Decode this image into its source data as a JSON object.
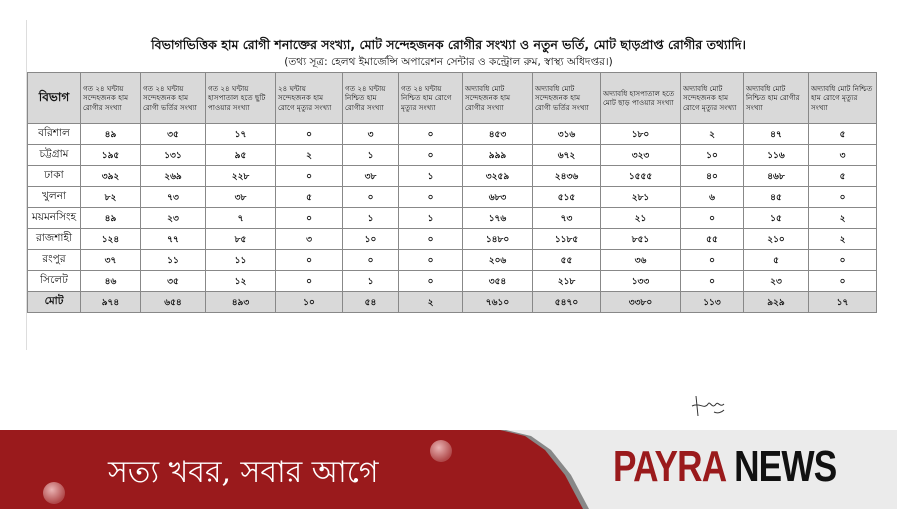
{
  "document": {
    "title": "বিভাগভিত্তিক হাম রোগী শনাক্তের সংখ্যা, মোট সন্দেহজনক রোগীর সংখ্যা ও নতুন ভর্তি, মোট ছাড়প্রাপ্ত রোগীর তথ্যাদি।",
    "subtitle": "(তথ্য সূত্র: হেলথ ইমার্জেন্সি অপারেশন সেন্টার ও কন্ট্রোল রুম, স্বাস্থ্য অধিদপ্তর।)"
  },
  "table": {
    "headers": [
      "বিভাগ",
      "গত ২৪ ঘন্টায় সন্দেহজনক হাম রোগীর সংখ্যা",
      "গত ২৪ ঘন্টায় সন্দেহজনক হাম রোগী ভর্তির সংখ্যা",
      "গত ২৪ ঘন্টায় হাসপাতাল হতে ছুটি পাওয়ার সংখ্যা",
      "২৪ ঘন্টায় সন্দেহজনক হাম রোগে মৃত্যুর সংখ্যা",
      "গত ২৪ ঘন্টায় নিশ্চিত হাম রোগীর সংখ্যা",
      "গত ২৪ ঘন্টায় নিশ্চিত হাম রোগে মৃত্যুর সংখ্যা",
      "অদ্যাবধি মোট সন্দেহজনক হাম রোগীর সংখ্যা",
      "অদ্যাবধি মোট সন্দেহজনক হাম রোগী ভর্তির সংখ্যা",
      "অদ্যাবধি হাসপাতাল হতে মোট ছাড় পাওয়ার সংখ্যা",
      "অদ্যাবধি মোট সন্দেহজনক হাম রোগে মৃত্যুর সংখ্যা",
      "অদ্যাবধি মোট নিশ্চিত হাম রোগীর সংখ্যা",
      "অদ্যাবধি মোট নিশ্চিত হাম রোগে মৃত্যুর সংখ্যা"
    ],
    "rows": [
      [
        "বরিশাল",
        "৪৯",
        "৩৫",
        "১৭",
        "০",
        "৩",
        "০",
        "৪৫৩",
        "৩১৬",
        "১৮০",
        "২",
        "৪৭",
        "৫"
      ],
      [
        "চট্টগ্রাম",
        "১৯৫",
        "১৩১",
        "৯৫",
        "২",
        "১",
        "০",
        "৯৯৯",
        "৬৭২",
        "৩২৩",
        "১০",
        "১১৬",
        "৩"
      ],
      [
        "ঢাকা",
        "৩৯২",
        "২৬৯",
        "২২৮",
        "০",
        "৩৮",
        "১",
        "৩২৫৯",
        "২৪৩৬",
        "১৫৫৫",
        "৪০",
        "৪৬৮",
        "৫"
      ],
      [
        "খুলনা",
        "৮২",
        "৭৩",
        "৩৮",
        "৫",
        "০",
        "০",
        "৬৮৩",
        "৫১৫",
        "২৮১",
        "৬",
        "৪৫",
        "০"
      ],
      [
        "ময়মনসিংহ",
        "৪৯",
        "২৩",
        "৭",
        "০",
        "১",
        "১",
        "১৭৬",
        "৭৩",
        "২১",
        "০",
        "১৫",
        "২"
      ],
      [
        "রাজশাহী",
        "১২৪",
        "৭৭",
        "৮৫",
        "৩",
        "১০",
        "০",
        "১৪৮০",
        "১১৮৫",
        "৮৫১",
        "৫৫",
        "২১০",
        "২"
      ],
      [
        "রংপুর",
        "৩৭",
        "১১",
        "১১",
        "০",
        "০",
        "০",
        "২০৬",
        "৫৫",
        "৩৬",
        "০",
        "৫",
        "০"
      ],
      [
        "সিলেট",
        "৪৬",
        "৩৫",
        "১২",
        "০",
        "১",
        "০",
        "৩৫৪",
        "২১৮",
        "১৩৩",
        "০",
        "২৩",
        "০"
      ]
    ],
    "total": [
      "মোট",
      "৯৭৪",
      "৬৫৪",
      "৪৯৩",
      "১০",
      "৫৪",
      "২",
      "৭৬১০",
      "৫৪৭০",
      "৩৩৮০",
      "১১৩",
      "৯২৯",
      "১৭"
    ]
  },
  "banner": {
    "slogan": "সত্য খবর, সবার আগে",
    "logo_part1": "PAYRA",
    "logo_part2": "NEWS",
    "brand_red": "#9a1a1c"
  }
}
